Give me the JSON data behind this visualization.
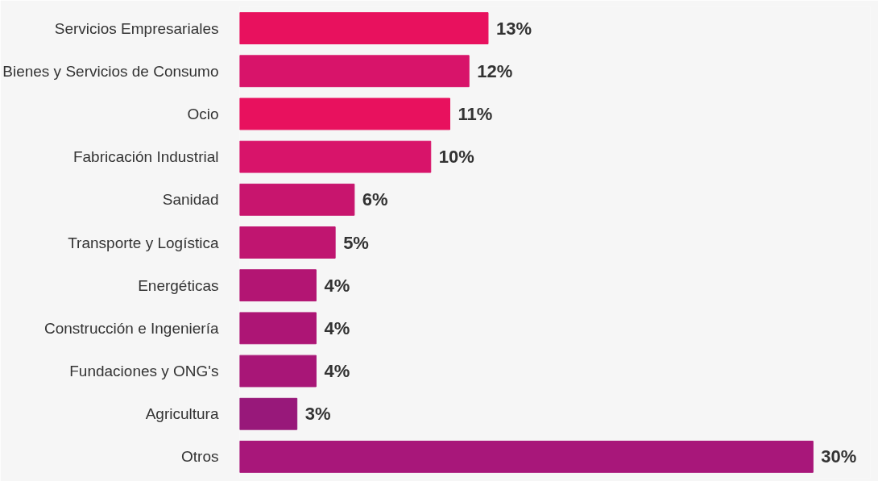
{
  "chart_data": {
    "type": "bar",
    "orientation": "horizontal",
    "categories": [
      "Servicios Empresariales",
      "Bienes y Servicios de Consumo",
      "Ocio",
      "Fabricación Industrial",
      "Sanidad",
      "Transporte y Logística",
      "Energéticas",
      "Construcción e Ingeniería",
      "Fundaciones y ONG's",
      "Agricultura",
      "Otros"
    ],
    "values": [
      13,
      12,
      11,
      10,
      6,
      5,
      4,
      4,
      4,
      3,
      30
    ],
    "value_labels": [
      "13%",
      "12%",
      "11%",
      "10%",
      "6%",
      "5%",
      "4%",
      "4%",
      "4%",
      "3%",
      "30%"
    ],
    "colors": [
      "#e8115e",
      "#d8146a",
      "#e8115e",
      "#d8146a",
      "#c8156e",
      "#c01570",
      "#b31573",
      "#ad1575",
      "#a81677",
      "#98187a",
      "#a8177a"
    ],
    "grid": false
  }
}
